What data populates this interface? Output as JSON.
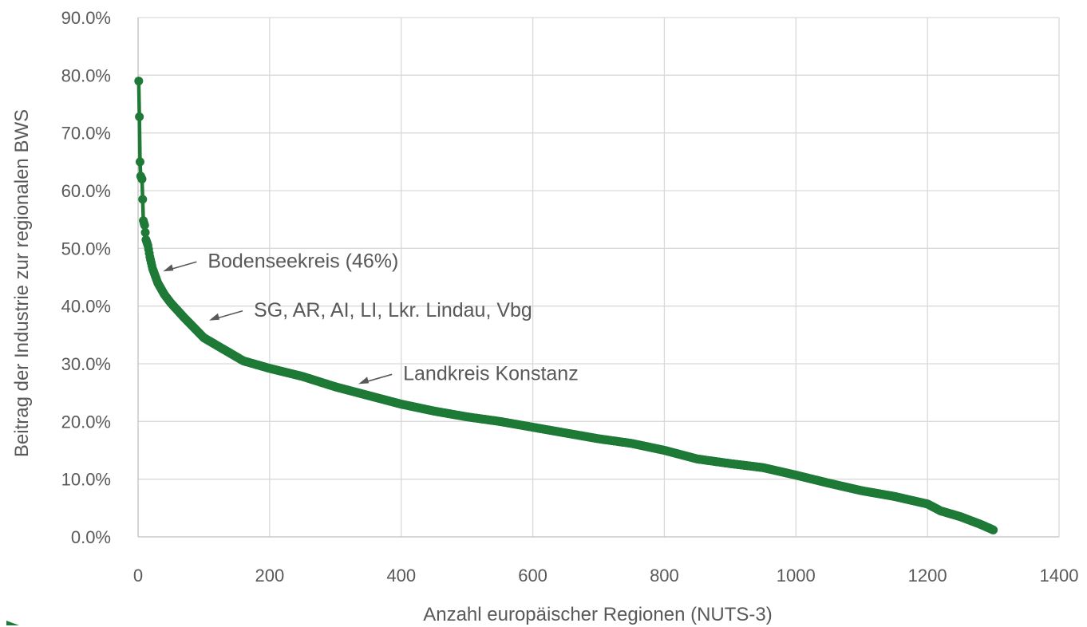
{
  "chart_data": {
    "type": "scatter",
    "title": "",
    "xlabel": "Anzahl europäischer Regionen (NUTS-3)",
    "ylabel": "Beitrag der Industrie zur regionalen BWS",
    "xlim": [
      0,
      1400
    ],
    "ylim": [
      0,
      0.9
    ],
    "x_ticks": [
      0,
      200,
      400,
      600,
      800,
      1000,
      1200,
      1400
    ],
    "x_tick_labels": [
      "0",
      "200",
      "400",
      "600",
      "800",
      "1000",
      "1200",
      "1400"
    ],
    "y_ticks": [
      0,
      0.1,
      0.2,
      0.3,
      0.4,
      0.5,
      0.6,
      0.7,
      0.8,
      0.9
    ],
    "y_tick_labels": [
      "0.0%",
      "10.0%",
      "20.0%",
      "30.0%",
      "40.0%",
      "50.0%",
      "60.0%",
      "70.0%",
      "80.0%",
      "90.0%"
    ],
    "grid": true,
    "color": "#1e7a36",
    "n_points": 1300,
    "curve_points": [
      [
        1,
        0.79
      ],
      [
        2,
        0.728
      ],
      [
        3,
        0.65
      ],
      [
        4,
        0.625
      ],
      [
        6,
        0.62
      ],
      [
        7,
        0.585
      ],
      [
        8,
        0.548
      ],
      [
        10,
        0.54
      ],
      [
        12,
        0.515
      ],
      [
        15,
        0.505
      ],
      [
        18,
        0.485
      ],
      [
        22,
        0.465
      ],
      [
        30,
        0.44
      ],
      [
        40,
        0.42
      ],
      [
        50,
        0.405
      ],
      [
        70,
        0.38
      ],
      [
        100,
        0.345
      ],
      [
        130,
        0.325
      ],
      [
        160,
        0.305
      ],
      [
        200,
        0.292
      ],
      [
        250,
        0.278
      ],
      [
        300,
        0.26
      ],
      [
        350,
        0.245
      ],
      [
        400,
        0.23
      ],
      [
        450,
        0.218
      ],
      [
        500,
        0.208
      ],
      [
        550,
        0.2
      ],
      [
        600,
        0.19
      ],
      [
        650,
        0.18
      ],
      [
        700,
        0.17
      ],
      [
        750,
        0.162
      ],
      [
        800,
        0.15
      ],
      [
        850,
        0.135
      ],
      [
        900,
        0.127
      ],
      [
        950,
        0.12
      ],
      [
        1000,
        0.107
      ],
      [
        1050,
        0.093
      ],
      [
        1100,
        0.08
      ],
      [
        1150,
        0.07
      ],
      [
        1200,
        0.057
      ],
      [
        1220,
        0.045
      ],
      [
        1250,
        0.035
      ],
      [
        1280,
        0.022
      ],
      [
        1300,
        0.012
      ]
    ],
    "annotations": [
      {
        "text": "Bodenseekreis (46%)",
        "x": 38,
        "y": 0.46
      },
      {
        "text": "SG, AR, AI, LI, Lkr. Lindau, Vbg",
        "x": 108,
        "y": 0.375
      },
      {
        "text": "Landkreis Konstanz",
        "x": 335,
        "y": 0.265
      }
    ]
  }
}
